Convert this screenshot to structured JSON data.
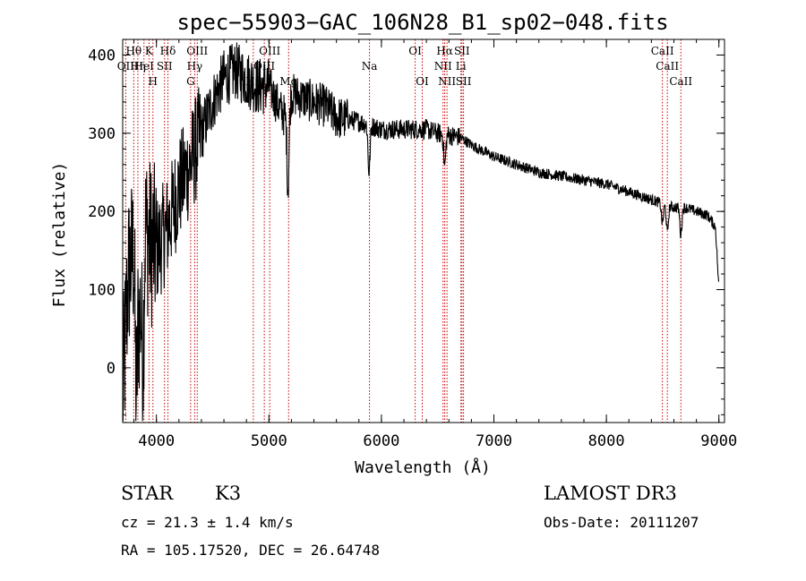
{
  "chart_data": {
    "type": "line",
    "title": "spec−55903−GAC_106N28_B1_sp02−048.fits",
    "xlabel": "Wavelength (Å)",
    "ylabel": "Flux (relative)",
    "xlim": [
      3700,
      9050
    ],
    "ylim": [
      -70,
      420
    ],
    "x_ticks": [
      4000,
      5000,
      6000,
      7000,
      8000,
      9000
    ],
    "y_ticks": [
      0,
      100,
      200,
      300,
      400
    ],
    "spectrum_anchors": {
      "x": [
        3700,
        3750,
        3800,
        3850,
        3900,
        3950,
        4000,
        4100,
        4200,
        4300,
        4400,
        4500,
        4600,
        4700,
        4800,
        4900,
        5000,
        5100,
        5150,
        5200,
        5300,
        5400,
        5500,
        5600,
        5800,
        5900,
        6000,
        6200,
        6400,
        6500,
        6700,
        6800,
        7000,
        7200,
        7400,
        7600,
        7800,
        8000,
        8200,
        8400,
        8500,
        8600,
        8700,
        8800,
        8900,
        8970,
        9000
      ],
      "y": [
        -40,
        120,
        150,
        60,
        180,
        160,
        150,
        180,
        230,
        260,
        300,
        340,
        370,
        380,
        370,
        360,
        360,
        330,
        320,
        350,
        345,
        340,
        335,
        320,
        315,
        310,
        305,
        305,
        305,
        300,
        295,
        285,
        270,
        260,
        250,
        245,
        240,
        235,
        225,
        215,
        210,
        205,
        205,
        200,
        195,
        180,
        100
      ]
    },
    "absorption_dips": [
      {
        "x": 5170,
        "depth": 100
      },
      {
        "x": 5890,
        "depth": 60
      },
      {
        "x": 6563,
        "depth": 40
      },
      {
        "x": 8498,
        "depth": 25
      },
      {
        "x": 8542,
        "depth": 35
      },
      {
        "x": 8662,
        "depth": 35
      },
      {
        "x": 3820,
        "depth": 150
      },
      {
        "x": 3880,
        "depth": 120
      }
    ],
    "emission_lines": [
      {
        "wavelength": 3727,
        "row": 2,
        "label": "OII"
      },
      {
        "wavelength": 3798,
        "row": 1,
        "label": "Hθ"
      },
      {
        "wavelength": 3835,
        "row": 2,
        "label": "Hη"
      },
      {
        "wavelength": 3889,
        "row": 2,
        "label": "HeI"
      },
      {
        "wavelength": 3934,
        "row": 1,
        "label": "K"
      },
      {
        "wavelength": 3969,
        "row": 3,
        "label": "H"
      },
      {
        "wavelength": 4072,
        "row": 2,
        "label": "SII"
      },
      {
        "wavelength": 4102,
        "row": 1,
        "label": "Hδ"
      },
      {
        "wavelength": 4304,
        "row": 3,
        "label": "G"
      },
      {
        "wavelength": 4340,
        "row": 2,
        "label": "Hγ"
      },
      {
        "wavelength": 4363,
        "row": 1,
        "label": "OIII"
      },
      {
        "wavelength": 4861,
        "row": 3,
        "label": "Hβ"
      },
      {
        "wavelength": 4959,
        "row": 2,
        "label": "OIII"
      },
      {
        "wavelength": 5007,
        "row": 1,
        "label": "OIII"
      },
      {
        "wavelength": 5175,
        "row": 3,
        "label": "Mg"
      },
      {
        "wavelength": 5894,
        "row": 2,
        "label": "Na"
      },
      {
        "wavelength": 6300,
        "row": 1,
        "label": "OI"
      },
      {
        "wavelength": 6363,
        "row": 3,
        "label": "OI"
      },
      {
        "wavelength": 6548,
        "row": 2,
        "label": "NII"
      },
      {
        "wavelength": 6563,
        "row": 1,
        "label": "Hα"
      },
      {
        "wavelength": 6583,
        "row": 3,
        "label": "NII"
      },
      {
        "wavelength": 6707,
        "row": 2,
        "label": "Li"
      },
      {
        "wavelength": 6716,
        "row": 1,
        "label": "SII"
      },
      {
        "wavelength": 6730,
        "row": 3,
        "label": "SII"
      },
      {
        "wavelength": 8498,
        "row": 1,
        "label": "CaII"
      },
      {
        "wavelength": 8542,
        "row": 2,
        "label": "CaII"
      },
      {
        "wavelength": 8662,
        "row": 3,
        "label": "CaII"
      }
    ]
  },
  "info": {
    "object_class": "STAR",
    "subclass": "K3",
    "survey": "LAMOST DR3",
    "redshift": "cz = 21.3 ± 1.4 km/s",
    "obs_date": "Obs-Date: 20111207",
    "coords": "RA = 105.17520, DEC =  26.64748"
  },
  "colors": {
    "spectrum": "#000000",
    "line_marker": "#cc0000",
    "axis": "#000000"
  }
}
